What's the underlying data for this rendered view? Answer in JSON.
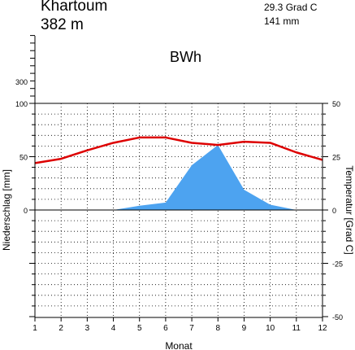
{
  "header": {
    "station": "Khartoum",
    "elevation": "382 m",
    "temp_avg": "29.3 Grad C",
    "precip_total": "141 mm",
    "climate_class": "BWh"
  },
  "colors": {
    "temperature": "#dd0000",
    "precipitation_fill": "#4da3f0",
    "axis": "#000000",
    "grid": "#000000"
  },
  "chart_data": {
    "type": "line",
    "title": "Khartoum",
    "xlabel": "Monat",
    "ylabel_left": "Niederschlag [mm]",
    "ylabel_right": "Temperatur [Grad C]",
    "x": [
      1,
      2,
      3,
      4,
      5,
      6,
      7,
      8,
      9,
      10,
      11,
      12
    ],
    "x_ticks": [
      "1",
      "2",
      "3",
      "4",
      "5",
      "6",
      "7",
      "8",
      "9",
      "10",
      "11",
      "12"
    ],
    "ylim_left": [
      -100,
      100
    ],
    "ylim_right": [
      -50,
      50
    ],
    "left_ticks": [
      "0",
      "50",
      "100"
    ],
    "upper_scale_ticks": [
      "300"
    ],
    "right_ticks": [
      "-50",
      "-25",
      "0",
      "25",
      "50"
    ],
    "grid": true,
    "series": [
      {
        "name": "Niederschlag",
        "axis": "left",
        "style": "area",
        "values": [
          0,
          0,
          0,
          0,
          4,
          7,
          42,
          61,
          19,
          5,
          0,
          0
        ]
      },
      {
        "name": "Temperatur",
        "axis": "right",
        "style": "line",
        "values": [
          22.0,
          24.0,
          28.0,
          31.5,
          34.0,
          34.0,
          31.5,
          30.5,
          32.0,
          31.5,
          27.0,
          23.5
        ]
      }
    ]
  }
}
